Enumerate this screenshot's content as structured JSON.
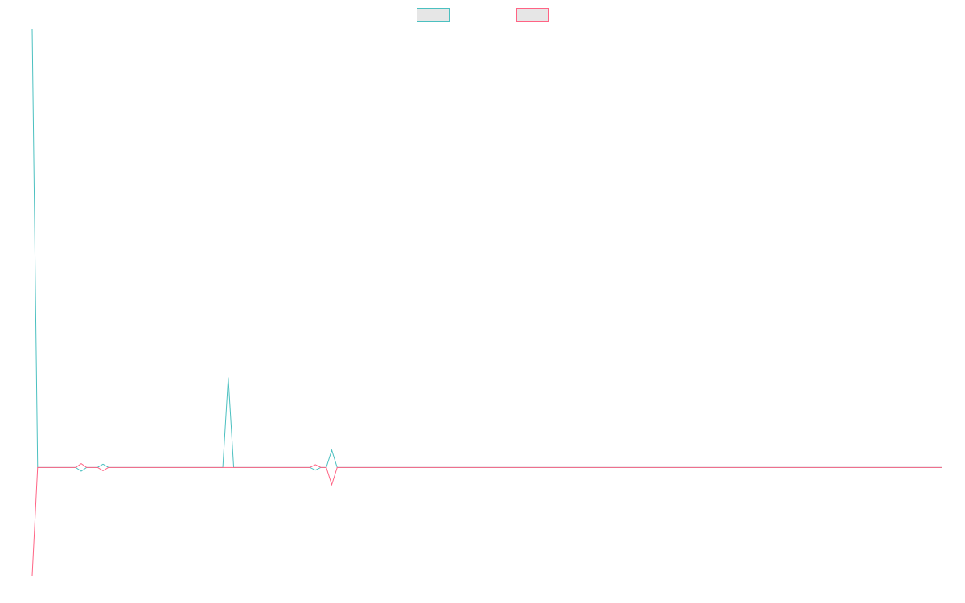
{
  "chart_data": {
    "type": "line",
    "title": "",
    "xlabel": "",
    "ylabel": "",
    "grid": false,
    "legend_position": "top",
    "x": [
      0,
      1,
      2,
      3,
      4,
      5,
      6,
      7,
      8,
      9,
      10,
      11,
      12,
      13,
      14,
      15,
      16,
      17,
      18,
      19,
      20,
      21,
      22,
      23,
      24,
      25,
      26,
      27,
      28,
      29,
      30,
      31,
      32,
      33,
      34,
      35,
      36,
      37,
      38,
      39,
      40,
      41,
      42,
      43,
      44,
      45,
      46,
      47,
      48,
      49,
      50,
      51,
      52,
      53,
      54,
      55,
      56,
      57,
      58,
      59,
      60,
      61,
      62,
      63,
      64,
      65,
      66,
      67,
      68,
      69,
      70,
      71,
      72,
      73,
      74,
      75,
      76,
      77,
      78,
      79,
      80,
      81,
      82,
      83,
      84,
      85,
      86,
      87,
      88,
      89,
      90,
      91,
      92,
      93,
      94,
      95,
      96,
      97,
      98,
      99,
      100,
      101,
      102,
      103,
      104,
      105,
      106,
      107,
      108,
      109,
      110,
      111,
      112,
      113,
      114,
      115,
      116,
      117,
      118,
      119,
      120,
      121,
      122,
      123,
      124,
      125,
      126,
      127,
      128,
      129,
      130,
      131,
      132,
      133,
      134,
      135,
      136,
      137,
      138,
      139,
      140,
      141,
      142,
      143,
      144,
      145,
      146,
      147,
      148,
      149,
      150,
      151,
      152,
      153,
      154,
      155,
      156,
      157,
      158,
      159,
      160,
      161,
      162,
      163,
      164,
      165,
      166,
      167
    ],
    "xlim": [
      0,
      167
    ],
    "ylim": [
      -2,
      8.1
    ],
    "series": [
      {
        "color": "#4bc0c0",
        "values": [
          8.1,
          0,
          0,
          0,
          0,
          0,
          0,
          0,
          0,
          -0.07,
          0,
          0,
          0,
          0.06,
          0,
          0,
          0,
          0,
          0,
          0,
          0,
          0,
          0,
          0,
          0,
          0,
          0,
          0,
          0,
          0,
          0,
          0,
          0,
          0,
          0,
          0,
          1.66,
          0,
          0,
          0,
          0,
          0,
          0,
          0,
          0,
          0,
          0,
          0,
          0,
          0,
          0,
          0,
          -0.05,
          0,
          0,
          0.32,
          0,
          0,
          0,
          0,
          0,
          0,
          0,
          0,
          0,
          0,
          0,
          0,
          0,
          0,
          0,
          0,
          0,
          0,
          0,
          0,
          0,
          0,
          0,
          0,
          0,
          0,
          0,
          0,
          0,
          0,
          0,
          0,
          0,
          0,
          0,
          0,
          0,
          0,
          0,
          0,
          0,
          0,
          0,
          0,
          0,
          0,
          0,
          0,
          0,
          0,
          0,
          0,
          0,
          0,
          0,
          0,
          0,
          0,
          0,
          0,
          0,
          0,
          0,
          0,
          0,
          0,
          0,
          0,
          0,
          0,
          0,
          0,
          0,
          0,
          0,
          0,
          0,
          0,
          0,
          0,
          0,
          0,
          0,
          0,
          0,
          0,
          0,
          0,
          0,
          0,
          0,
          0,
          0,
          0,
          0,
          0,
          0,
          0,
          0,
          0,
          0,
          0,
          0,
          0,
          0,
          0,
          0,
          0,
          0,
          0,
          0,
          0
        ]
      },
      {
        "color": "#ff6384",
        "values": [
          -2,
          0,
          0,
          0,
          0,
          0,
          0,
          0,
          0,
          0.07,
          0,
          0,
          0,
          -0.06,
          0,
          0,
          0,
          0,
          0,
          0,
          0,
          0,
          0,
          0,
          0,
          0,
          0,
          0,
          0,
          0,
          0,
          0,
          0,
          0,
          0,
          0,
          0,
          0,
          0,
          0,
          0,
          0,
          0,
          0,
          0,
          0,
          0,
          0,
          0,
          0,
          0,
          0,
          0.05,
          0,
          0,
          -0.32,
          0,
          0,
          0,
          0,
          0,
          0,
          0,
          0,
          0,
          0,
          0,
          0,
          0,
          0,
          0,
          0,
          0,
          0,
          0,
          0,
          0,
          0,
          0,
          0,
          0,
          0,
          0,
          0,
          0,
          0,
          0,
          0,
          0,
          0,
          0,
          0,
          0,
          0,
          0,
          0,
          0,
          0,
          0,
          0,
          0,
          0,
          0,
          0,
          0,
          0,
          0,
          0,
          0,
          0,
          0,
          0,
          0,
          0,
          0,
          0,
          0,
          0,
          0,
          0,
          0,
          0,
          0,
          0,
          0,
          0,
          0,
          0,
          0,
          0,
          0,
          0,
          0,
          0,
          0,
          0,
          0,
          0,
          0,
          0,
          0,
          0,
          0,
          0,
          0,
          0,
          0,
          0,
          0,
          0,
          0,
          0,
          0,
          0,
          0,
          0,
          0,
          0,
          0,
          0,
          0,
          0,
          0,
          0,
          0,
          0,
          0,
          0
        ]
      }
    ]
  }
}
